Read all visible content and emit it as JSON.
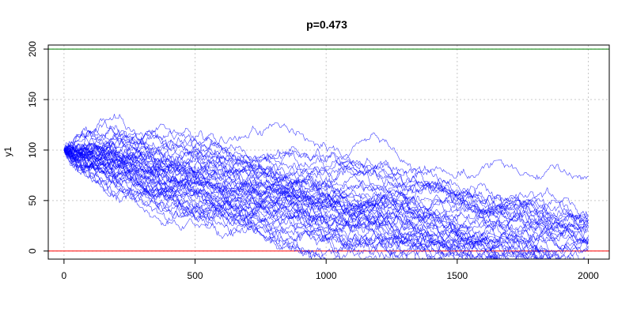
{
  "chart_data": {
    "type": "line",
    "title": "p=0.473",
    "xlabel": "",
    "ylabel": "y1",
    "xlim": [
      -60,
      2080
    ],
    "ylim": [
      -8,
      204
    ],
    "xticks": [
      0,
      500,
      1000,
      1500,
      2000
    ],
    "yticks": [
      0,
      50,
      100,
      150,
      200
    ],
    "grid": true,
    "reference_lines": [
      {
        "y": 200,
        "color": "#008000"
      },
      {
        "y": 0,
        "color": "#ff0000"
      }
    ],
    "series_color": "#0000ff",
    "n_series": 50,
    "steps": 2000,
    "start_value": 100,
    "p": 0.473,
    "series_endpoints": [
      {
        "x": 2000,
        "y": 74
      },
      {
        "x": 2000,
        "y": 36
      },
      {
        "x": 2000,
        "y": 30
      },
      {
        "x": 2000,
        "y": 25
      },
      {
        "x": 2000,
        "y": 20
      },
      {
        "x": 2000,
        "y": 12
      },
      {
        "x": 2000,
        "y": 5
      }
    ]
  }
}
